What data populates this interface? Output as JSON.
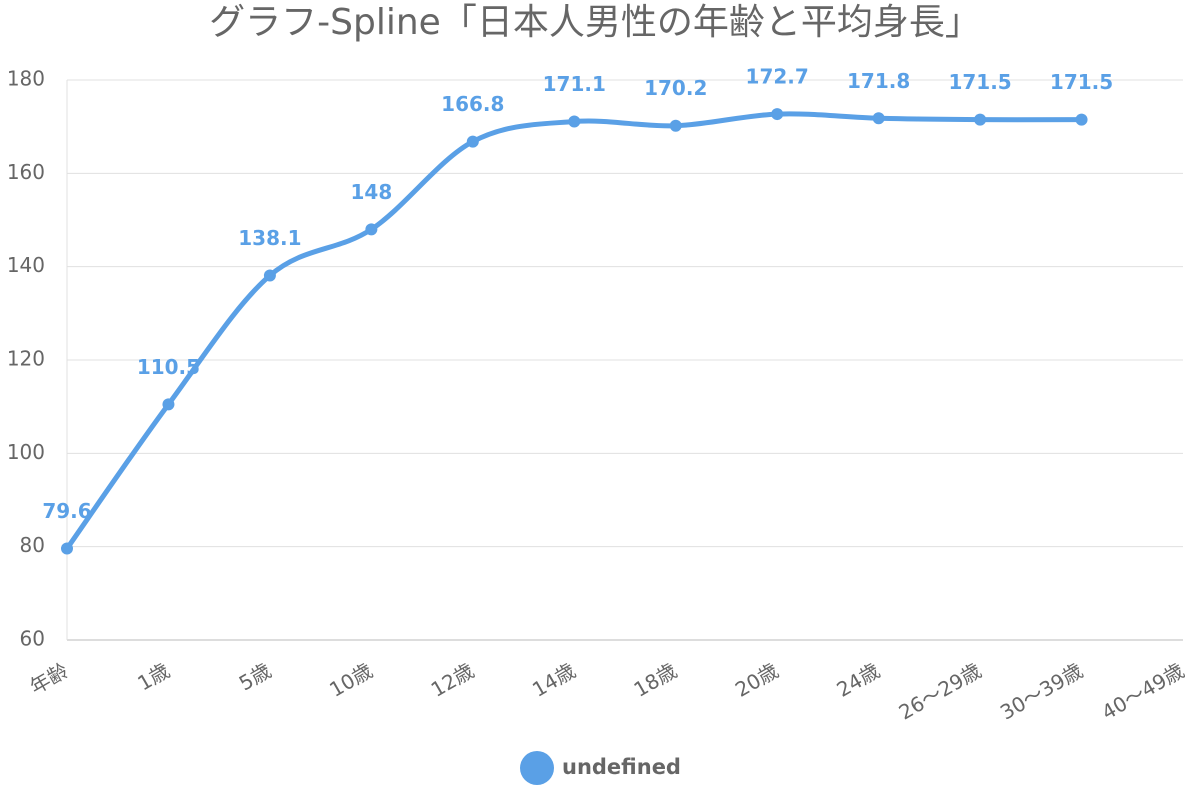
{
  "chart_data": {
    "type": "line",
    "title": "グラフ-Spline「日本人男性の年齢と平均身長」",
    "categories": [
      "年齢",
      "1歳",
      "5歳",
      "10歳",
      "12歳",
      "14歳",
      "18歳",
      "20歳",
      "24歳",
      "26〜29歳",
      "30〜39歳",
      "40〜49歳"
    ],
    "series": [
      {
        "name": "undefined",
        "color": "#5aa0e6",
        "values": [
          79.6,
          110.5,
          138.1,
          148,
          166.8,
          171.1,
          170.2,
          172.7,
          171.8,
          171.5,
          171.5,
          null
        ]
      }
    ],
    "ylim": [
      60,
      180
    ],
    "yticks": [
      60,
      80,
      100,
      120,
      140,
      160,
      180
    ],
    "grid": true,
    "smooth": true,
    "legend": "bottom"
  }
}
